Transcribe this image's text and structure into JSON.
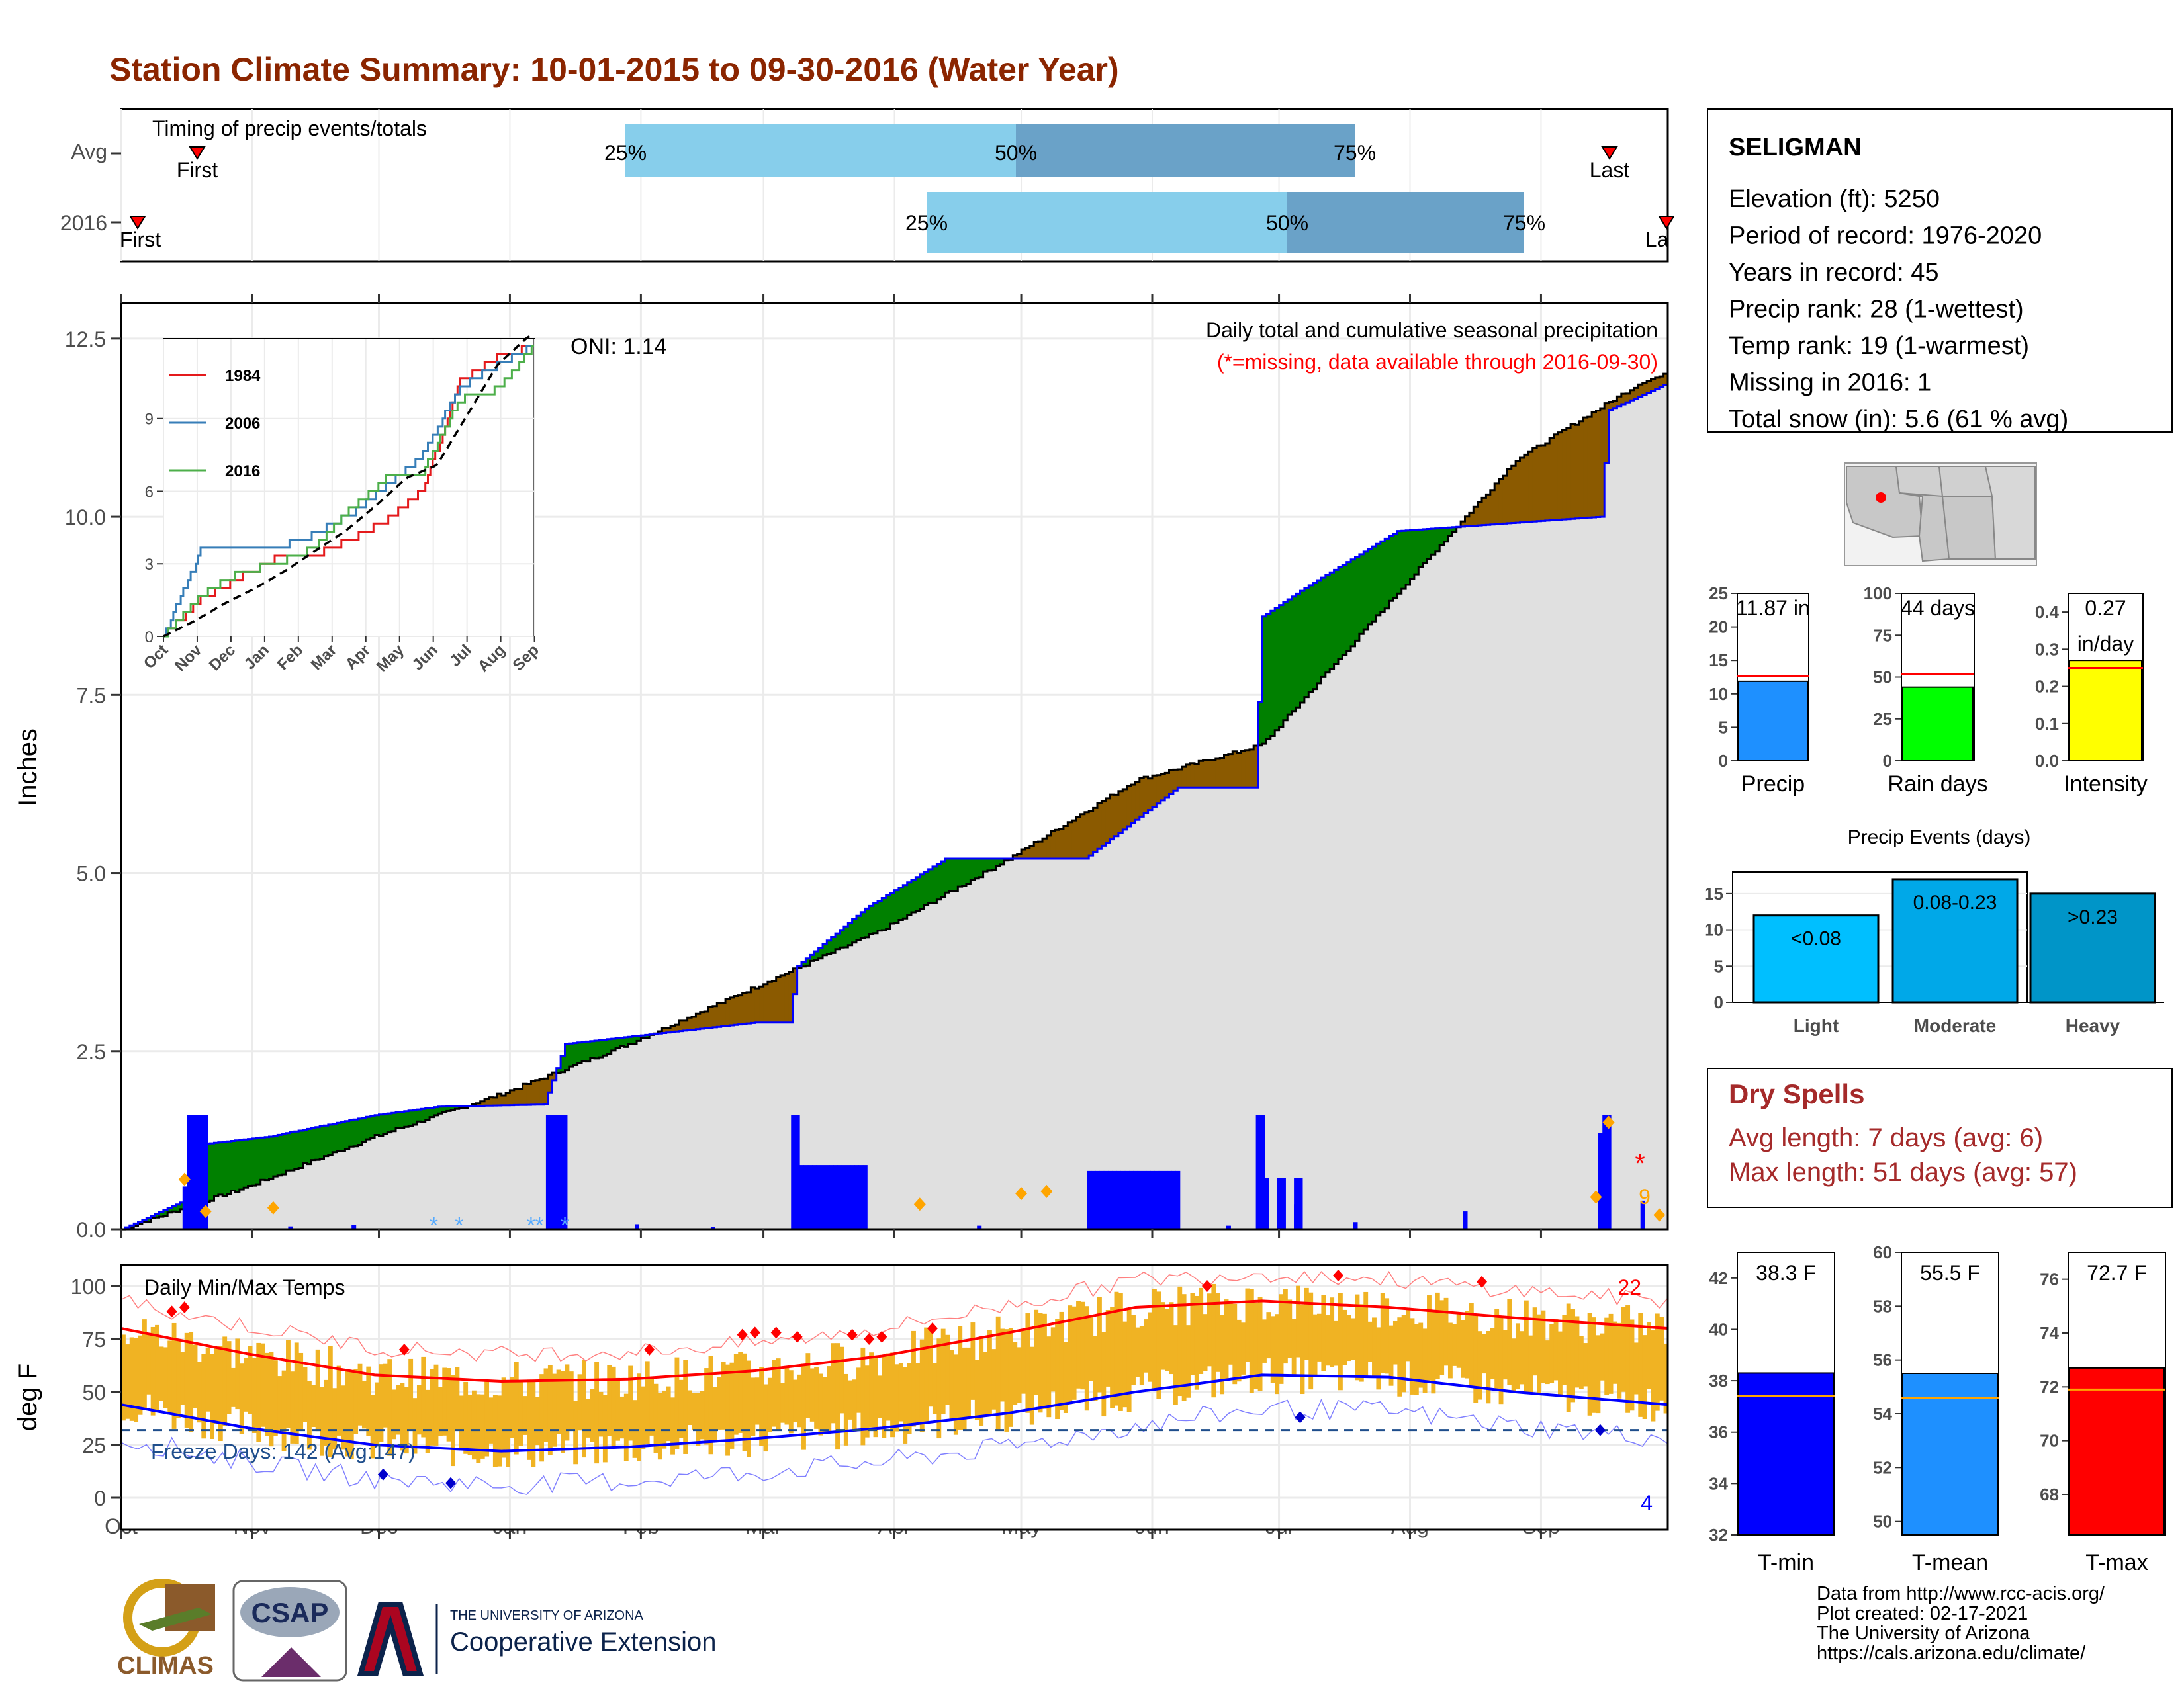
{
  "title": "Station Climate Summary: 10-01-2015 to 09-30-2016 (Water Year)",
  "colors": {
    "title": "#8b2500",
    "q_light": "#87ceeb",
    "q_dark": "#6aa2c8",
    "precip_bar": "#0000ff",
    "surplus": "#008000",
    "deficit": "#8b5a00",
    "normal_area": "#e0e0e0",
    "temp_range": "#f0b323",
    "tmax": "#ff0000",
    "tmin": "#0000ff",
    "freeze_line": "#1f4e8c"
  },
  "timing": {
    "label": "Timing of precip events/totals",
    "rows": [
      "Avg",
      "2016"
    ],
    "avg": {
      "first": "First",
      "last": "Last",
      "q25": "25%",
      "q50": "50%",
      "q75": "75%"
    },
    "y2016": {
      "first": "First",
      "last": "Last",
      "q25": "25%",
      "q50": "50%",
      "q75": "75%"
    }
  },
  "months": [
    "Oct",
    "Nov",
    "Dec",
    "Jan",
    "Feb",
    "Mar",
    "Apr",
    "May",
    "Jun",
    "Jul",
    "Aug",
    "Sep"
  ],
  "precip_panel": {
    "ylabel": "Inches",
    "yticks": [
      "0.0",
      "2.5",
      "5.0",
      "7.5",
      "10.0",
      "12.5"
    ],
    "title_line1": "Daily total and cumulative seasonal precipitation",
    "title_line2": "(*=missing, data available through 2016-09-30)",
    "oni": "ONI: 1.14",
    "annot_9": "9",
    "missing_star": "*"
  },
  "inset": {
    "yticks": [
      "0",
      "3",
      "6",
      "9"
    ],
    "months": [
      "Oct",
      "Nov",
      "Dec",
      "Jan",
      "Feb",
      "Mar",
      "Apr",
      "May",
      "Jun",
      "Jul",
      "Aug",
      "Sep"
    ],
    "legend": [
      {
        "name": "1984",
        "color": "#e41a1c"
      },
      {
        "name": "2006",
        "color": "#377eb8"
      },
      {
        "name": "2016",
        "color": "#4daf4a"
      }
    ]
  },
  "temp_panel": {
    "ylabel": "deg F",
    "label": "Daily Min/Max Temps",
    "yticks": [
      "0",
      "25",
      "50",
      "75",
      "100"
    ],
    "freeze": "Freeze Days: 142 (Avg:147)",
    "count_hot": "22",
    "count_cold": "4"
  },
  "station": {
    "name": "SELIGMAN",
    "lines": [
      "Elevation (ft): 5250",
      "Period of record: 1976-2020",
      "Years in record: 45",
      "Precip rank: 28 (1-wettest)",
      "Temp rank: 19 (1-warmest)",
      "Missing in 2016: 1",
      "Total snow (in): 5.6 (61 % avg)"
    ]
  },
  "mini_bars": [
    {
      "label": "Precip",
      "value": 11.87,
      "avg": 12.7,
      "text1": "11.87 in",
      "text2": "",
      "ticks": [
        "0",
        "5",
        "10",
        "15",
        "20",
        "25"
      ],
      "max": 25,
      "color": "#1e90ff"
    },
    {
      "label": "Rain days",
      "value": 44,
      "avg": 52,
      "text1": "44 days",
      "text2": "",
      "ticks": [
        "0",
        "25",
        "50",
        "75",
        "100"
      ],
      "max": 100,
      "color": "#00ff00"
    },
    {
      "label": "Intensity",
      "value": 0.27,
      "avg": 0.25,
      "text1": "0.27",
      "text2": "in/day",
      "ticks": [
        "0.0",
        "0.1",
        "0.2",
        "0.3",
        "0.4"
      ],
      "max": 0.45,
      "color": "#ffff00"
    }
  ],
  "precip_events": {
    "title": "Precip Events (days)",
    "yticks": [
      "0",
      "5",
      "10",
      "15"
    ],
    "bars": [
      {
        "label": "Light",
        "range": "<0.08",
        "value": 12,
        "color": "#00bfff"
      },
      {
        "label": "Moderate",
        "range": "0.08-0.23",
        "value": 17,
        "color": "#00a8e8"
      },
      {
        "label": "Heavy",
        "range": ">0.23",
        "value": 15,
        "color": "#0095c8"
      }
    ]
  },
  "dry_spells": {
    "title": "Dry Spells",
    "avg_line": "Avg length: 7 days (avg: 6)",
    "max_line": "Max length: 51 days (avg: 57)"
  },
  "temp_bars": [
    {
      "label": "T-min",
      "value": 38.3,
      "avg": 37.4,
      "text": "38.3 F",
      "ticks": [
        "32",
        "34",
        "36",
        "38",
        "40",
        "42"
      ],
      "min": 32,
      "max": 43,
      "color": "#0000ff"
    },
    {
      "label": "T-mean",
      "value": 55.5,
      "avg": 54.6,
      "text": "55.5 F",
      "ticks": [
        "50",
        "52",
        "54",
        "56",
        "58",
        "60"
      ],
      "min": 49.5,
      "max": 60,
      "color": "#1e90ff"
    },
    {
      "label": "T-max",
      "value": 72.7,
      "avg": 71.9,
      "text": "72.7 F",
      "ticks": [
        "68",
        "70",
        "72",
        "74",
        "76"
      ],
      "min": 66.5,
      "max": 77,
      "color": "#ff0000"
    }
  ],
  "credits": [
    "Data from http://www.rcc-acis.org/",
    "Plot created: 02-17-2021",
    "The University of Arizona",
    "https://cals.arizona.edu/climate/"
  ],
  "logos": {
    "climas": "CLIMAS",
    "csap": "CSAP",
    "ua_line1": "THE UNIVERSITY OF ARIZONA",
    "ua_line2": "Cooperative Extension"
  },
  "chart_data": [
    {
      "type": "area",
      "name_hint": "cumulative precipitation",
      "x_unit": "day of water year",
      "cumulative_2016": [
        [
          0,
          0
        ],
        [
          15,
          0.4
        ],
        [
          20,
          1.2
        ],
        [
          35,
          1.3
        ],
        [
          60,
          1.6
        ],
        [
          75,
          1.72
        ],
        [
          100,
          1.75
        ],
        [
          105,
          2.6
        ],
        [
          150,
          2.9
        ],
        [
          158,
          2.9
        ],
        [
          160,
          3.7
        ],
        [
          176,
          4.5
        ],
        [
          195,
          5.2
        ],
        [
          228,
          5.2
        ],
        [
          250,
          6.2
        ],
        [
          268,
          6.2
        ],
        [
          270,
          8.6
        ],
        [
          280,
          9.0
        ],
        [
          302,
          9.8
        ],
        [
          350,
          10.0
        ],
        [
          352,
          11.5
        ],
        [
          366,
          11.87
        ]
      ],
      "cumulative_avg": [
        [
          0,
          0
        ],
        [
          30,
          0.6
        ],
        [
          60,
          1.3
        ],
        [
          90,
          1.9
        ],
        [
          120,
          2.6
        ],
        [
          150,
          3.4
        ],
        [
          180,
          4.2
        ],
        [
          210,
          5.2
        ],
        [
          240,
          6.3
        ],
        [
          270,
          6.8
        ],
        [
          300,
          8.8
        ],
        [
          330,
          10.8
        ],
        [
          360,
          11.9
        ],
        [
          366,
          12.0
        ]
      ],
      "ylim": [
        0,
        13
      ]
    },
    {
      "type": "line",
      "name_hint": "inset cumulative comparison",
      "series": [
        {
          "name": "1984",
          "points": [
            [
              0,
              0
            ],
            [
              30,
              1.5
            ],
            [
              60,
              2.4
            ],
            [
              90,
              3.2
            ],
            [
              120,
              3.3
            ],
            [
              150,
              4.0
            ],
            [
              180,
              4.8
            ],
            [
              210,
              6.0
            ],
            [
              240,
              10.5
            ],
            [
              270,
              11.5
            ],
            [
              300,
              12.0
            ]
          ]
        },
        {
          "name": "2006",
          "points": [
            [
              0,
              0
            ],
            [
              30,
              3.5
            ],
            [
              60,
              3.5
            ],
            [
              90,
              3.6
            ],
            [
              120,
              4.2
            ],
            [
              150,
              5.0
            ],
            [
              180,
              6.2
            ],
            [
              210,
              7.5
            ],
            [
              240,
              10.3
            ],
            [
              270,
              11.2
            ],
            [
              300,
              12.0
            ]
          ]
        },
        {
          "name": "2016",
          "points": [
            [
              0,
              0
            ],
            [
              30,
              1.7
            ],
            [
              60,
              2.6
            ],
            [
              90,
              3.0
            ],
            [
              120,
              3.6
            ],
            [
              150,
              5.2
            ],
            [
              180,
              6.5
            ],
            [
              210,
              6.8
            ],
            [
              240,
              9.8
            ],
            [
              270,
              10.2
            ],
            [
              300,
              12.0
            ]
          ]
        }
      ],
      "ylim": [
        0,
        12
      ]
    },
    {
      "type": "area",
      "name_hint": "daily temps",
      "avg_tmax": [
        [
          0,
          80
        ],
        [
          30,
          68
        ],
        [
          60,
          58
        ],
        [
          90,
          55
        ],
        [
          120,
          56
        ],
        [
          150,
          60
        ],
        [
          180,
          67
        ],
        [
          210,
          78
        ],
        [
          240,
          90
        ],
        [
          270,
          93
        ],
        [
          300,
          90
        ],
        [
          330,
          85
        ],
        [
          366,
          80
        ]
      ],
      "avg_tmin": [
        [
          0,
          44
        ],
        [
          30,
          33
        ],
        [
          60,
          25
        ],
        [
          90,
          22
        ],
        [
          120,
          24
        ],
        [
          150,
          28
        ],
        [
          180,
          33
        ],
        [
          210,
          40
        ],
        [
          240,
          50
        ],
        [
          270,
          58
        ],
        [
          300,
          57
        ],
        [
          330,
          50
        ],
        [
          366,
          44
        ]
      ],
      "ylim": [
        -15,
        110
      ]
    }
  ]
}
